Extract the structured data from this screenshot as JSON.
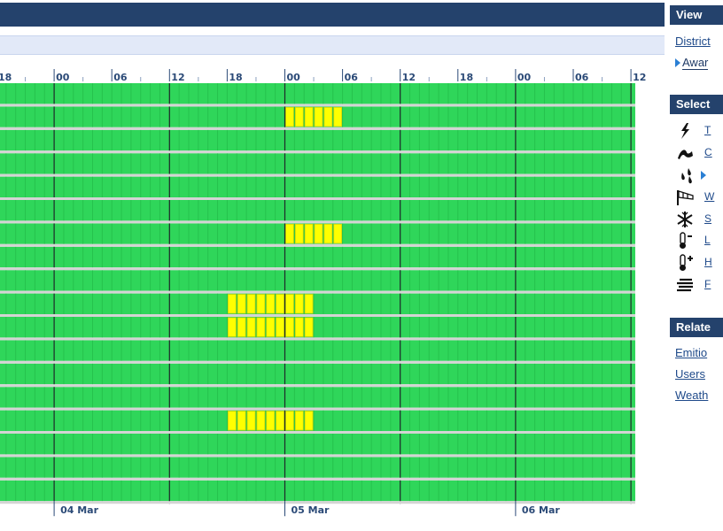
{
  "timeline": {
    "hour_labels": [
      "18",
      "00",
      "06",
      "12",
      "18",
      "00",
      "06",
      "12",
      "18",
      "00",
      "06",
      "12"
    ],
    "date_labels": [
      "04 Mar",
      "05 Mar",
      "06 Mar"
    ],
    "colors": {
      "ok": "#2fd65a",
      "warning": "#ffff00",
      "divider": "#d4d4d4",
      "midnight": "#1e2a2a"
    },
    "rows": [
      {
        "warnings": []
      },
      {
        "warnings": [
          [
            20,
            3
          ]
        ]
      },
      {
        "warnings": []
      },
      {
        "warnings": []
      },
      {
        "warnings": []
      },
      {
        "warnings": []
      },
      {
        "warnings": [
          [
            20,
            3
          ]
        ]
      },
      {
        "warnings": []
      },
      {
        "warnings": []
      },
      {
        "warnings": [
          [
            15,
            24
          ]
        ]
      },
      {
        "warnings": [
          [
            15,
            24
          ]
        ]
      },
      {
        "warnings": []
      },
      {
        "warnings": []
      },
      {
        "warnings": []
      },
      {
        "warnings": [
          [
            15,
            24
          ]
        ]
      },
      {
        "warnings": []
      },
      {
        "warnings": []
      },
      {
        "warnings": []
      }
    ]
  },
  "sidebar": {
    "view_head": "View",
    "view_links": [
      "District",
      "Awar"
    ],
    "select_head": "Select",
    "icons": [
      {
        "name": "thunder-icon",
        "label": "T"
      },
      {
        "name": "coastal-icon",
        "label": "C"
      },
      {
        "name": "rain-icon",
        "label": ""
      },
      {
        "name": "wind-icon",
        "label": "W"
      },
      {
        "name": "snow-icon",
        "label": "S"
      },
      {
        "name": "low-temperature-icon",
        "label": "L"
      },
      {
        "name": "high-temperature-icon",
        "label": "H"
      },
      {
        "name": "fog-icon",
        "label": "F"
      }
    ],
    "related_head": "Relate",
    "related_links": [
      "Emitio",
      "Users",
      "Weath"
    ]
  }
}
